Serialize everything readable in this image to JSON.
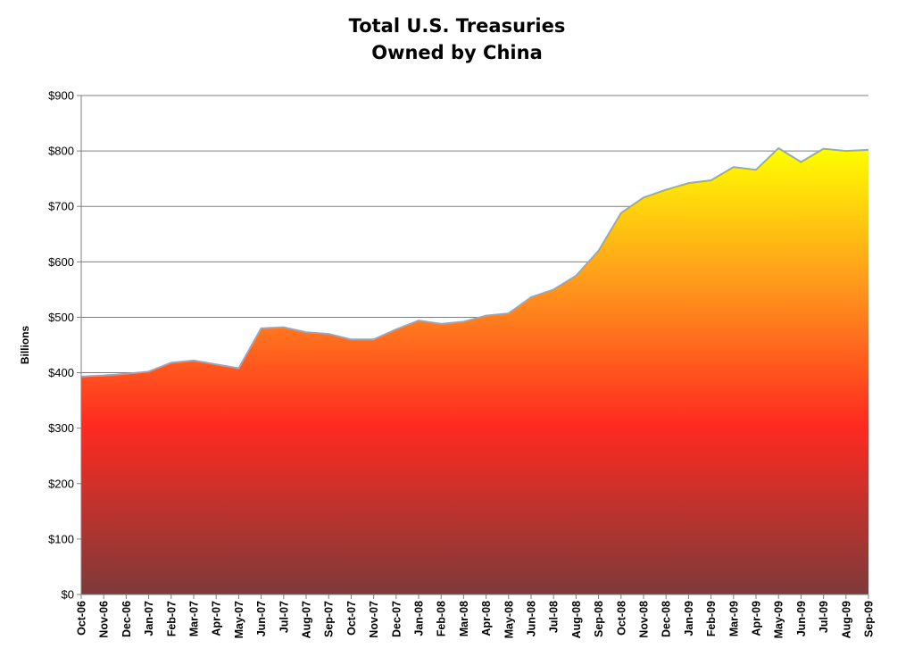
{
  "chart_data": {
    "type": "area",
    "title": "Total U.S. Treasuries",
    "subtitle": "Owned by China",
    "xlabel": "",
    "ylabel": "Billions",
    "ylim": [
      0,
      900
    ],
    "yticks": [
      "$0",
      "$100",
      "$200",
      "$300",
      "$400",
      "$500",
      "$600",
      "$700",
      "$800",
      "$900"
    ],
    "grid": true,
    "legend": "none",
    "categories": [
      "Oct-06",
      "Nov-06",
      "Dec-06",
      "Jan-07",
      "Feb-07",
      "Mar-07",
      "Apr-07",
      "May-07",
      "Jun-07",
      "Jul-07",
      "Aug-07",
      "Sep-07",
      "Oct-07",
      "Nov-07",
      "Dec-07",
      "Jan-08",
      "Feb-08",
      "Mar-08",
      "Apr-08",
      "May-08",
      "Jun-08",
      "Jul-08",
      "Aug-08",
      "Sep-08",
      "Oct-08",
      "Nov-08",
      "Dec-08",
      "Jan-09",
      "Feb-09",
      "Mar-09",
      "Apr-09",
      "May-09",
      "Jun-09",
      "Jul-09",
      "Aug-09",
      "Sep-09"
    ],
    "values": [
      393,
      395,
      398,
      402,
      418,
      422,
      415,
      408,
      480,
      482,
      473,
      470,
      460,
      460,
      478,
      494,
      488,
      492,
      503,
      507,
      536,
      550,
      575,
      620,
      688,
      716,
      730,
      742,
      747,
      771,
      766,
      805,
      780,
      804,
      800,
      802
    ],
    "colors": {
      "line": "#8fa9c9",
      "fill_top": "#ffff00",
      "fill_mid_orange": "#ff9a1c",
      "fill_mid_red": "#ff2a20",
      "fill_bottom": "#7d3a3a",
      "grid": "#7f7f7f"
    }
  }
}
